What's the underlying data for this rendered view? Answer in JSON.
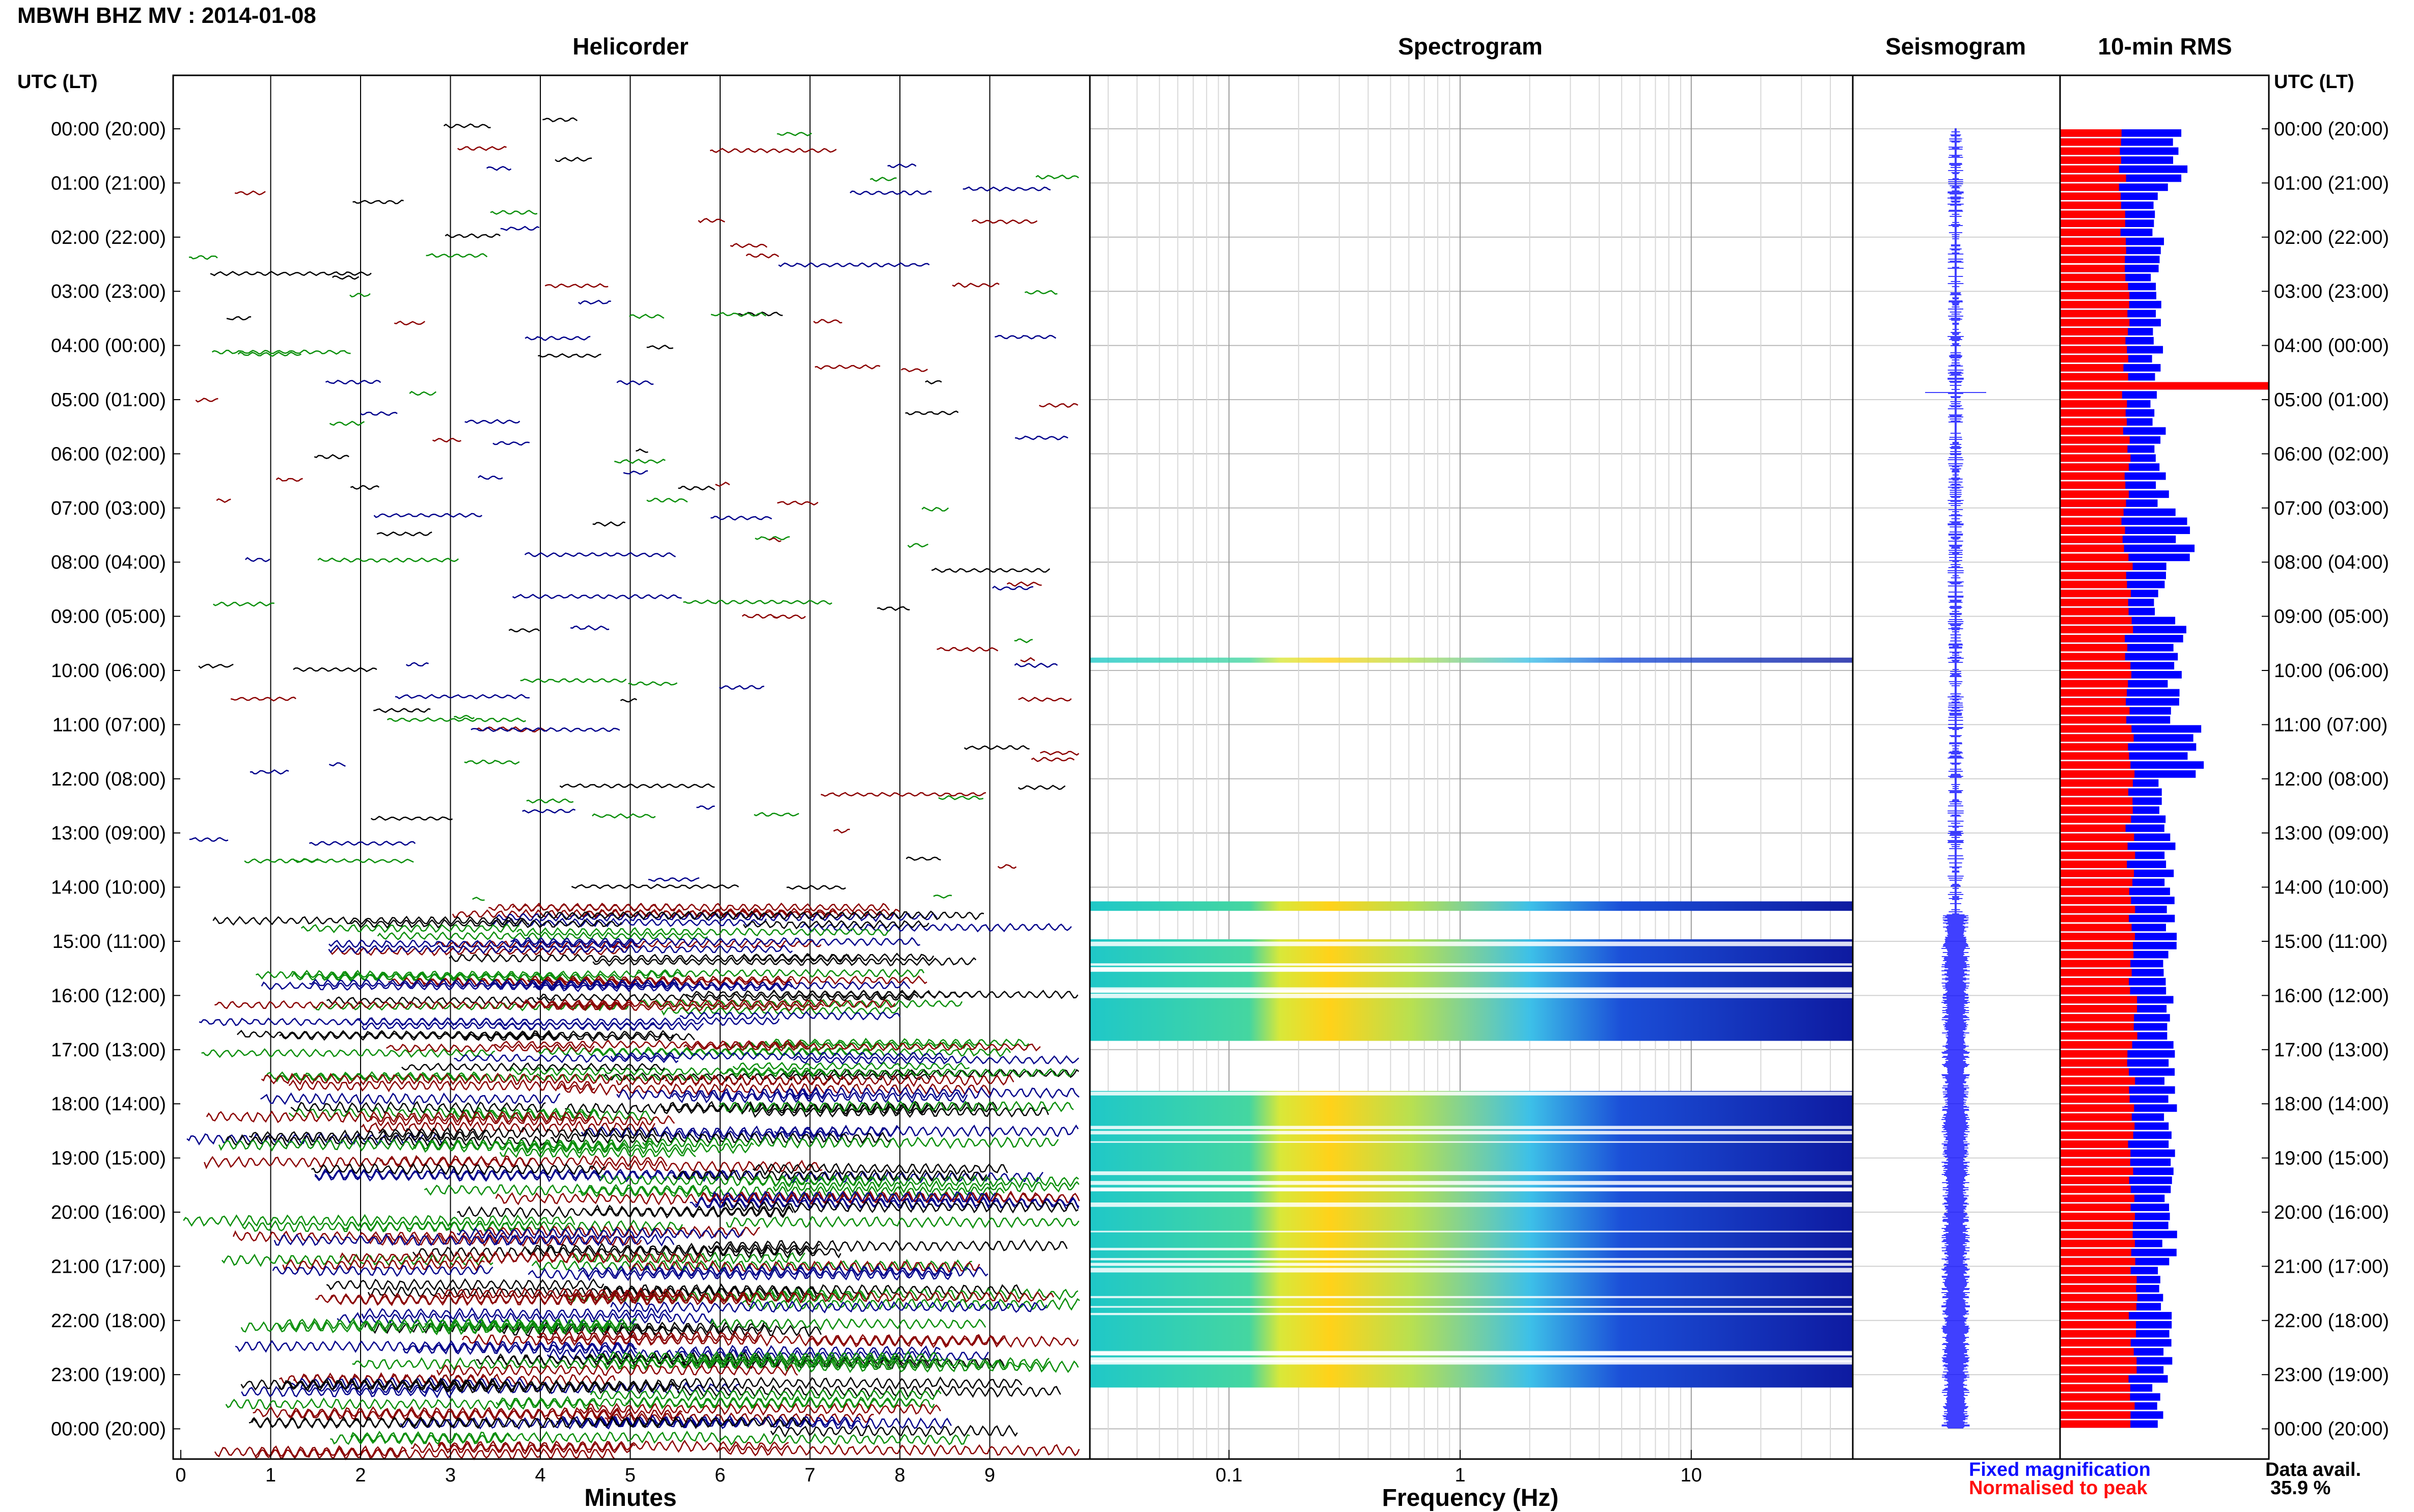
{
  "header": {
    "title": "MBWH BHZ MV : 2014-01-08"
  },
  "panel_titles": {
    "helicorder": "Helicorder",
    "spectrogram": "Spectrogram",
    "seismogram": "Seismogram",
    "rms": "10-min RMS"
  },
  "utc_header": "UTC (LT)",
  "footer": {
    "helicorder_xlabel": "Minutes",
    "spectrogram_xlabel": "Frequency (Hz)",
    "legend_fixed": "Fixed magnification",
    "legend_normalised": "Normalised to peak",
    "data_avail_label": "Data avail.",
    "data_avail_value": "35.9 %"
  },
  "colors": {
    "trace_cycle": [
      "#000000",
      "#0b8f0b",
      "#8b0000",
      "#00008b"
    ],
    "rms_fixed": "#0000ff",
    "rms_normalised": "#ff0000",
    "seismogram": "#0000ff"
  },
  "chart_data": [
    {
      "type": "line",
      "name": "helicorder",
      "title": "Helicorder",
      "xlabel": "Minutes",
      "xlim": [
        0,
        10
      ],
      "x_ticks": [
        "0",
        "1",
        "2",
        "3",
        "4",
        "5",
        "6",
        "7",
        "8",
        "9"
      ],
      "rows_per_hour": 6,
      "y_ticks": [
        "00:00 (20:00)",
        "01:00 (21:00)",
        "02:00 (22:00)",
        "03:00 (23:00)",
        "04:00 (00:00)",
        "05:00 (01:00)",
        "06:00 (02:00)",
        "07:00 (03:00)",
        "08:00 (04:00)",
        "09:00 (05:00)",
        "10:00 (06:00)",
        "11:00 (07:00)",
        "12:00 (08:00)",
        "13:00 (09:00)",
        "14:00 (10:00)",
        "15:00 (11:00)",
        "16:00 (12:00)",
        "17:00 (13:00)",
        "18:00 (14:00)",
        "19:00 (15:00)",
        "20:00 (16:00)",
        "21:00 (17:00)",
        "22:00 (18:00)",
        "23:00 (19:00)",
        "00:00 (20:00)"
      ],
      "continuous_data_from_hour": 14.2,
      "data_availability_percent": 35.9
    },
    {
      "type": "heatmap",
      "name": "spectrogram",
      "title": "Spectrogram",
      "xlabel": "Frequency (Hz)",
      "x_scale": "log",
      "xlim": [
        0.025,
        50
      ],
      "x_ticks": [
        "0.1",
        "1",
        "10"
      ],
      "peak_energy_band_hz": [
        0.15,
        0.5
      ],
      "active_hours": [
        [
          9.8,
          9.8
        ],
        [
          14.3,
          14.4
        ],
        [
          15.0,
          16.8
        ],
        [
          17.8,
          23.2
        ]
      ]
    },
    {
      "type": "line",
      "name": "seismogram",
      "title": "Seismogram",
      "largest_event_hour": 4.85
    },
    {
      "type": "bar",
      "name": "rms",
      "title": "10-min RMS",
      "series": [
        {
          "name": "Fixed magnification",
          "color": "#0000ff",
          "hourly": [
            0.57,
            0.48,
            0.47,
            0.46,
            0.46,
            0.47,
            0.49,
            0.6,
            0.48,
            0.56,
            0.55,
            0.64,
            0.5,
            0.53,
            0.52,
            0.52,
            0.55,
            0.52,
            0.52,
            0.52,
            0.52,
            0.5,
            0.52,
            0.48
          ]
        },
        {
          "name": "Normalised to peak",
          "color": "#ff0000",
          "hourly": [
            0.3,
            0.3,
            0.31,
            0.32,
            0.31,
            0.32,
            0.32,
            0.31,
            0.33,
            0.33,
            0.33,
            0.34,
            0.33,
            0.34,
            0.34,
            0.35,
            0.35,
            0.34,
            0.34,
            0.35,
            0.35,
            0.35,
            0.35,
            0.34
          ]
        }
      ],
      "peak_hour": 4.7,
      "xlim": [
        0,
        1
      ]
    }
  ]
}
